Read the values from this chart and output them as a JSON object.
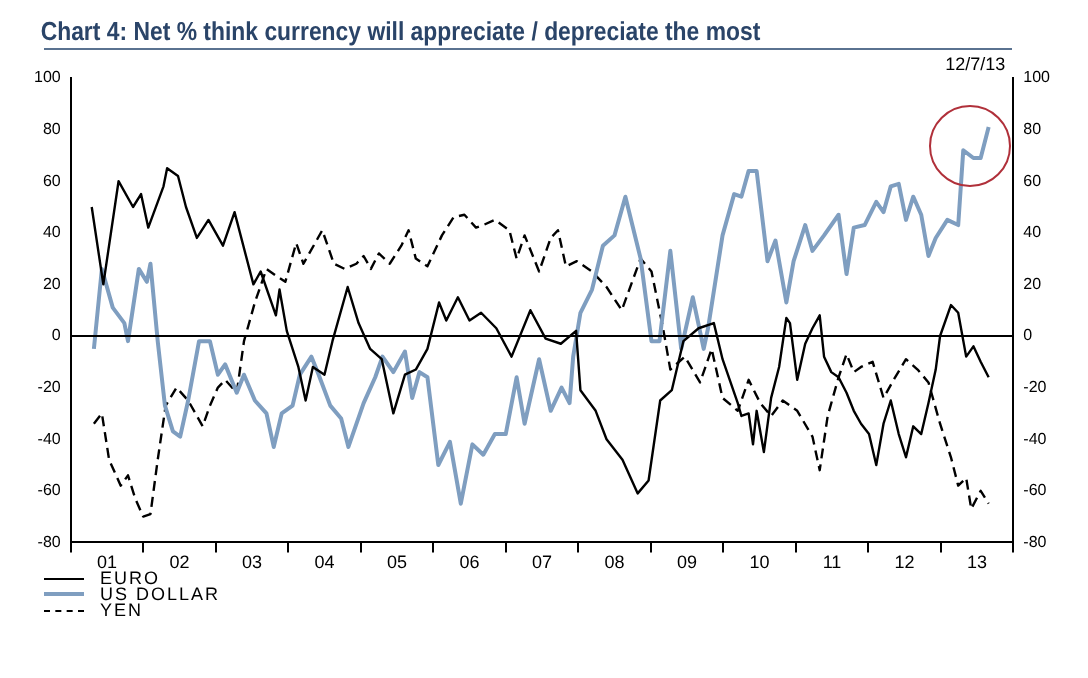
{
  "chart_data": {
    "type": "line",
    "title": "Chart 4: Net % think currency will appreciate / depreciate the most",
    "annotations": [
      "12/7/13"
    ],
    "xlim": [
      0.5,
      13.5
    ],
    "xticks": [
      {
        "value": 1,
        "label": "01"
      },
      {
        "value": 2,
        "label": "02"
      },
      {
        "value": 3,
        "label": "03"
      },
      {
        "value": 4,
        "label": "04"
      },
      {
        "value": 5,
        "label": "05"
      },
      {
        "value": 6,
        "label": "06"
      },
      {
        "value": 7,
        "label": "07"
      },
      {
        "value": 8,
        "label": "08"
      },
      {
        "value": 9,
        "label": "09"
      },
      {
        "value": 10,
        "label": "10"
      },
      {
        "value": 11,
        "label": "11"
      },
      {
        "value": 12,
        "label": "12"
      },
      {
        "value": 13,
        "label": "13"
      }
    ],
    "ylim": [
      -80,
      100
    ],
    "yticks": [
      -80,
      -60,
      -40,
      -20,
      0,
      20,
      40,
      60,
      80,
      100
    ],
    "y2lim": [
      -80,
      100
    ],
    "y2ticks": [
      -80,
      -60,
      -40,
      -20,
      0,
      20,
      40,
      60,
      80,
      100
    ],
    "ref_lines": [
      {
        "axis": "y",
        "value": 0,
        "color": "#000000"
      }
    ],
    "legend": "bottom left",
    "marker": "none",
    "series": [
      {
        "name": "EURO",
        "color": "#000000",
        "line_style": "solid",
        "x": [
          0.79,
          0.95,
          1.16,
          1.36,
          1.47,
          1.57,
          1.78,
          1.83,
          1.98,
          2.09,
          2.24,
          2.4,
          2.6,
          2.76,
          3.02,
          3.12,
          3.33,
          3.38,
          3.48,
          3.64,
          3.74,
          3.84,
          4,
          4.11,
          4.32,
          4.47,
          4.63,
          4.79,
          4.95,
          5.11,
          5.26,
          5.42,
          5.58,
          5.68,
          5.84,
          6,
          6.16,
          6.37,
          6.58,
          6.84,
          7.05,
          7.26,
          7.47,
          7.53,
          7.74,
          7.89,
          8.11,
          8.32,
          8.47,
          8.63,
          8.79,
          8.95,
          9.16,
          9.37,
          9.49,
          9.7,
          9.75,
          9.85,
          9.91,
          9.96,
          10.06,
          10.16,
          10.27,
          10.37,
          10.42,
          10.52,
          10.63,
          10.73,
          10.83,
          10.89,
          10.99,
          11.09,
          11.2,
          11.3,
          11.4,
          11.51,
          11.61,
          11.71,
          11.81,
          11.92,
          12.02,
          12.12,
          12.23,
          12.33,
          12.43,
          12.49,
          12.64,
          12.74,
          12.85,
          12.95,
          13.05,
          13.16
        ],
        "values": [
          50,
          20,
          60,
          50,
          55,
          42,
          58,
          65,
          62,
          50,
          38,
          45,
          35,
          48,
          20,
          25,
          8,
          18,
          2,
          -12,
          -25,
          -12,
          -15,
          -2,
          19,
          5,
          -5,
          -9,
          -30,
          -15,
          -13,
          -5,
          13,
          6,
          15,
          6,
          9,
          3,
          -8,
          10,
          -1,
          -3,
          2,
          -21,
          -29,
          -40,
          -48,
          -61,
          -56,
          -25,
          -21,
          -2,
          3,
          5,
          -9,
          -26,
          -31,
          -30,
          -42,
          -29,
          -45,
          -24,
          -12,
          7,
          5,
          -17,
          -3,
          3,
          8,
          -8,
          -14,
          -16,
          -22,
          -29,
          -34,
          -38,
          -50,
          -34,
          -25,
          -38,
          -47,
          -35,
          -38,
          -26,
          -13,
          0,
          12,
          9,
          -8,
          -4,
          -10,
          -16
        ]
      },
      {
        "name": "US DOLLAR",
        "color": "#7f9ec0",
        "line_style": "solid",
        "x": [
          0.82,
          0.93,
          1.08,
          1.24,
          1.29,
          1.44,
          1.55,
          1.6,
          1.7,
          1.8,
          1.91,
          2.01,
          2.12,
          2.27,
          2.42,
          2.53,
          2.63,
          2.79,
          2.89,
          3.04,
          3.2,
          3.3,
          3.41,
          3.56,
          3.66,
          3.82,
          3.92,
          4.08,
          4.23,
          4.33,
          4.54,
          4.7,
          4.8,
          4.95,
          5.11,
          5.21,
          5.31,
          5.42,
          5.57,
          5.73,
          5.88,
          6.04,
          6.19,
          6.35,
          6.5,
          6.65,
          6.76,
          6.96,
          7.12,
          7.27,
          7.38,
          7.43,
          7.53,
          7.69,
          7.84,
          8,
          8.15,
          8.36,
          8.51,
          8.62,
          8.77,
          8.92,
          9.08,
          9.23,
          9.29,
          9.39,
          9.49,
          9.65,
          9.75,
          9.85,
          9.96,
          10.11,
          10.22,
          10.37,
          10.47,
          10.63,
          10.73,
          10.89,
          11.09,
          11.2,
          11.3,
          11.45,
          11.61,
          11.71,
          11.81,
          11.92,
          12.02,
          12.12,
          12.23,
          12.33,
          12.43,
          12.59,
          12.74,
          12.81,
          12.95,
          13.05,
          13.16
        ],
        "values": [
          -5,
          26,
          11,
          5,
          -2,
          26,
          21,
          28,
          -2,
          -27,
          -37,
          -39,
          -25,
          -2,
          -2,
          -15,
          -11,
          -22,
          -15,
          -25,
          -30,
          -43,
          -30,
          -27,
          -15,
          -8,
          -15,
          -27,
          -32,
          -43,
          -26,
          -16,
          -8,
          -14,
          -6,
          -24,
          -14,
          -16,
          -50,
          -41,
          -65,
          -42,
          -46,
          -38,
          -38,
          -16,
          -34,
          -9,
          -29,
          -20,
          -26,
          -8,
          9,
          18,
          35,
          39,
          54,
          30,
          -2,
          -2,
          33,
          -5,
          15,
          -5,
          3,
          21,
          39,
          55,
          54,
          64,
          64,
          29,
          37,
          13,
          29,
          43,
          33,
          39,
          47,
          24,
          42,
          43,
          52,
          48,
          58,
          59,
          45,
          54,
          47,
          31,
          38,
          45,
          43,
          72,
          69,
          69,
          81
        ]
      },
      {
        "name": "YEN",
        "color": "#000000",
        "line_style": "dashed",
        "x": [
          0.82,
          0.93,
          1.03,
          1.19,
          1.29,
          1.39,
          1.5,
          1.6,
          1.7,
          1.81,
          1.96,
          2.12,
          2.32,
          2.42,
          2.53,
          2.63,
          2.79,
          2.89,
          3.04,
          3.2,
          3.35,
          3.46,
          3.61,
          3.71,
          3.87,
          3.97,
          4.13,
          4.28,
          4.44,
          4.54,
          4.64,
          4.75,
          4.9,
          5.06,
          5.16,
          5.26,
          5.42,
          5.62,
          5.78,
          5.93,
          6.09,
          6.19,
          6.35,
          6.55,
          6.65,
          6.76,
          6.96,
          7.12,
          7.22,
          7.33,
          7.48,
          7.69,
          7.89,
          8.1,
          8.36,
          8.51,
          8.67,
          8.77,
          8.97,
          9.18,
          9.34,
          9.49,
          9.7,
          9.85,
          10.01,
          10.16,
          10.32,
          10.52,
          10.73,
          10.83,
          10.94,
          11.09,
          11.2,
          11.3,
          11.4,
          11.56,
          11.71,
          11.87,
          12.02,
          12.18,
          12.33,
          12.49,
          12.64,
          12.74,
          12.85,
          12.92,
          13.05,
          13.16
        ],
        "values": [
          -34,
          -30,
          -48,
          -58,
          -54,
          -63,
          -70,
          -69,
          -48,
          -27,
          -20,
          -25,
          -35,
          -27,
          -20,
          -17,
          -22,
          -2,
          13,
          26,
          23,
          21,
          36,
          28,
          36,
          41,
          28,
          26,
          28,
          31,
          26,
          32,
          28,
          35,
          41,
          30,
          27,
          39,
          46,
          47,
          42,
          43,
          45,
          41,
          30,
          39,
          25,
          38,
          41,
          27,
          29,
          25,
          19,
          10,
          30,
          25,
          3,
          -13,
          -8,
          -18,
          -5,
          -24,
          -29,
          -17,
          -26,
          -31,
          -25,
          -29,
          -39,
          -52,
          -31,
          -16,
          -7,
          -14,
          -12,
          -10,
          -24,
          -16,
          -9,
          -13,
          -18,
          -34,
          -47,
          -58,
          -55,
          -67,
          -60,
          -65
        ]
      }
    ]
  }
}
